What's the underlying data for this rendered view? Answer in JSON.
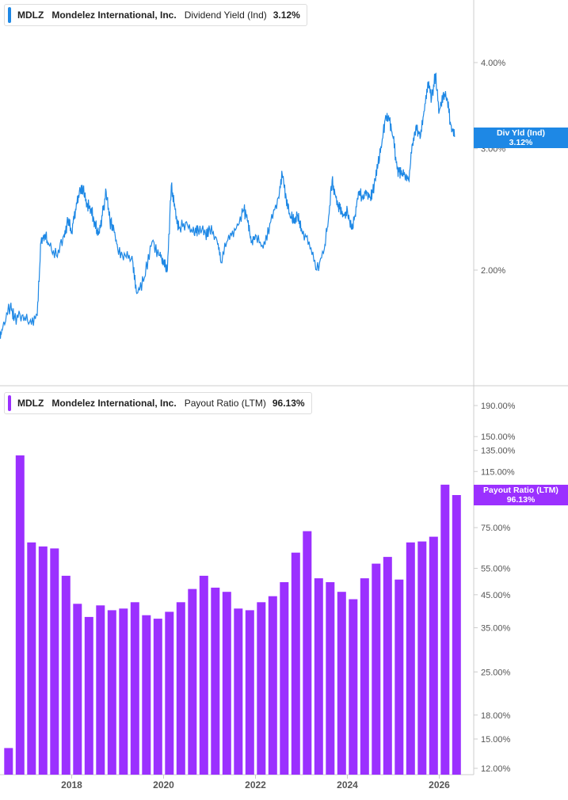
{
  "colors": {
    "yield": "#1e88e5",
    "payout": "#9b30ff",
    "axis": "#cccccc",
    "tick_text": "#555555"
  },
  "legend_top": {
    "ticker": "MDLZ",
    "company": "Mondelez International, Inc.",
    "metric": "Dividend Yield (Ind)",
    "value": "3.12%"
  },
  "legend_bottom": {
    "ticker": "MDLZ",
    "company": "Mondelez International, Inc.",
    "metric": "Payout Ratio (LTM)",
    "value": "96.13%"
  },
  "tag_top": {
    "line1": "Div Yld (Ind)",
    "line2": "3.12%"
  },
  "tag_bottom": {
    "line1": "Payout Ratio (LTM)",
    "line2": "96.13%"
  },
  "chart_data": [
    {
      "type": "line",
      "title": "MDLZ Mondelez International, Inc. Dividend Yield (Ind)",
      "series": [
        {
          "name": "Dividend Yield (Ind)",
          "color": "#1e88e5"
        }
      ],
      "y_scale": "log",
      "y_ticks": [
        "2.00%",
        "3.00%",
        "4.00%"
      ],
      "points": [
        [
          "2016-06",
          1.58
        ],
        [
          "2016-07",
          1.65
        ],
        [
          "2016-09",
          1.78
        ],
        [
          "2016-10",
          1.7
        ],
        [
          "2016-12",
          1.72
        ],
        [
          "2017-02",
          1.68
        ],
        [
          "2017-04",
          1.72
        ],
        [
          "2017-05",
          2.2
        ],
        [
          "2017-06",
          2.25
        ],
        [
          "2017-07",
          2.18
        ],
        [
          "2017-09",
          2.1
        ],
        [
          "2017-11",
          2.25
        ],
        [
          "2017-12",
          2.35
        ],
        [
          "2018-01",
          2.28
        ],
        [
          "2018-02",
          2.45
        ],
        [
          "2018-03",
          2.6
        ],
        [
          "2018-04",
          2.62
        ],
        [
          "2018-05",
          2.5
        ],
        [
          "2018-06",
          2.45
        ],
        [
          "2018-07",
          2.35
        ],
        [
          "2018-08",
          2.25
        ],
        [
          "2018-09",
          2.4
        ],
        [
          "2018-10",
          2.6
        ],
        [
          "2018-11",
          2.35
        ],
        [
          "2018-12",
          2.3
        ],
        [
          "2019-01",
          2.15
        ],
        [
          "2019-03",
          2.1
        ],
        [
          "2019-05",
          2.05
        ],
        [
          "2019-06",
          1.85
        ],
        [
          "2019-08",
          1.95
        ],
        [
          "2019-10",
          2.2
        ],
        [
          "2019-12",
          2.1
        ],
        [
          "2020-01",
          2.05
        ],
        [
          "2020-02",
          2.0
        ],
        [
          "2020-03",
          2.65
        ],
        [
          "2020-04",
          2.45
        ],
        [
          "2020-05",
          2.3
        ],
        [
          "2020-07",
          2.35
        ],
        [
          "2020-09",
          2.25
        ],
        [
          "2020-10",
          2.3
        ],
        [
          "2020-12",
          2.25
        ],
        [
          "2021-01",
          2.3
        ],
        [
          "2021-03",
          2.2
        ],
        [
          "2021-04",
          2.05
        ],
        [
          "2021-06",
          2.25
        ],
        [
          "2021-08",
          2.3
        ],
        [
          "2021-10",
          2.45
        ],
        [
          "2021-11",
          2.35
        ],
        [
          "2021-12",
          2.2
        ],
        [
          "2022-01",
          2.25
        ],
        [
          "2022-03",
          2.15
        ],
        [
          "2022-05",
          2.35
        ],
        [
          "2022-07",
          2.55
        ],
        [
          "2022-08",
          2.75
        ],
        [
          "2022-09",
          2.55
        ],
        [
          "2022-10",
          2.4
        ],
        [
          "2022-11",
          2.35
        ],
        [
          "2022-12",
          2.4
        ],
        [
          "2023-01",
          2.3
        ],
        [
          "2023-03",
          2.2
        ],
        [
          "2023-05",
          2.0
        ],
        [
          "2023-07",
          2.15
        ],
        [
          "2023-08",
          2.35
        ],
        [
          "2023-09",
          2.7
        ],
        [
          "2023-10",
          2.55
        ],
        [
          "2023-11",
          2.45
        ],
        [
          "2023-12",
          2.4
        ],
        [
          "2024-01",
          2.45
        ],
        [
          "2024-02",
          2.3
        ],
        [
          "2024-03",
          2.4
        ],
        [
          "2024-04",
          2.6
        ],
        [
          "2024-05",
          2.55
        ],
        [
          "2024-06",
          2.6
        ],
        [
          "2024-07",
          2.55
        ],
        [
          "2024-08",
          2.65
        ],
        [
          "2024-09",
          2.85
        ],
        [
          "2024-10",
          3.05
        ],
        [
          "2024-11",
          3.35
        ],
        [
          "2024-12",
          3.3
        ],
        [
          "2025-01",
          3.1
        ],
        [
          "2025-02",
          2.8
        ],
        [
          "2025-03",
          2.75
        ],
        [
          "2025-04",
          2.75
        ],
        [
          "2025-05",
          2.7
        ],
        [
          "2025-06",
          3.05
        ],
        [
          "2025-07",
          3.25
        ],
        [
          "2025-08",
          3.1
        ],
        [
          "2025-09",
          3.4
        ],
        [
          "2025-10",
          3.75
        ],
        [
          "2025-11",
          3.55
        ],
        [
          "2025-12",
          3.85
        ],
        [
          "2026-01",
          3.4
        ],
        [
          "2026-02",
          3.6
        ],
        [
          "2026-03",
          3.55
        ],
        [
          "2026-04",
          3.25
        ],
        [
          "2026-05",
          3.12
        ]
      ]
    },
    {
      "type": "bar",
      "title": "MDLZ Mondelez International, Inc. Payout Ratio (LTM)",
      "series": [
        {
          "name": "Payout Ratio (LTM)",
          "color": "#9b30ff"
        }
      ],
      "y_scale": "log",
      "y_ticks": [
        "12.00%",
        "15.00%",
        "18.00%",
        "25.00%",
        "35.00%",
        "45.00%",
        "55.00%",
        "75.00%",
        "115.00%",
        "135.00%",
        "150.00%",
        "190.00%"
      ],
      "x_labels": [
        "2018",
        "2020",
        "2022",
        "2024",
        "2026"
      ],
      "bars": [
        [
          "2016-Q3",
          14.0
        ],
        [
          "2016-Q4",
          130.0
        ],
        [
          "2017-Q1",
          67.0
        ],
        [
          "2017-Q2",
          65.0
        ],
        [
          "2017-Q3",
          64.0
        ],
        [
          "2017-Q4",
          52.0
        ],
        [
          "2018-Q1",
          42.0
        ],
        [
          "2018-Q2",
          38.0
        ],
        [
          "2018-Q3",
          41.5
        ],
        [
          "2018-Q4",
          40.0
        ],
        [
          "2019-Q1",
          40.5
        ],
        [
          "2019-Q2",
          42.5
        ],
        [
          "2019-Q3",
          38.5
        ],
        [
          "2019-Q4",
          37.5
        ],
        [
          "2020-Q1",
          39.5
        ],
        [
          "2020-Q2",
          42.5
        ],
        [
          "2020-Q3",
          47.0
        ],
        [
          "2020-Q4",
          52.0
        ],
        [
          "2021-Q1",
          47.5
        ],
        [
          "2021-Q2",
          46.0
        ],
        [
          "2021-Q3",
          40.5
        ],
        [
          "2021-Q4",
          40.0
        ],
        [
          "2022-Q1",
          42.5
        ],
        [
          "2022-Q2",
          44.5
        ],
        [
          "2022-Q3",
          49.5
        ],
        [
          "2022-Q4",
          62.0
        ],
        [
          "2023-Q1",
          73.0
        ],
        [
          "2023-Q2",
          51.0
        ],
        [
          "2023-Q3",
          49.5
        ],
        [
          "2023-Q4",
          46.0
        ],
        [
          "2024-Q1",
          43.5
        ],
        [
          "2024-Q2",
          51.0
        ],
        [
          "2024-Q3",
          57.0
        ],
        [
          "2024-Q4",
          60.0
        ],
        [
          "2025-Q1",
          50.5
        ],
        [
          "2025-Q2",
          67.0
        ],
        [
          "2025-Q3",
          67.5
        ],
        [
          "2025-Q4",
          70.0
        ],
        [
          "2026-Q1",
          104.0
        ],
        [
          "2026-Q2",
          96.13
        ]
      ]
    }
  ]
}
